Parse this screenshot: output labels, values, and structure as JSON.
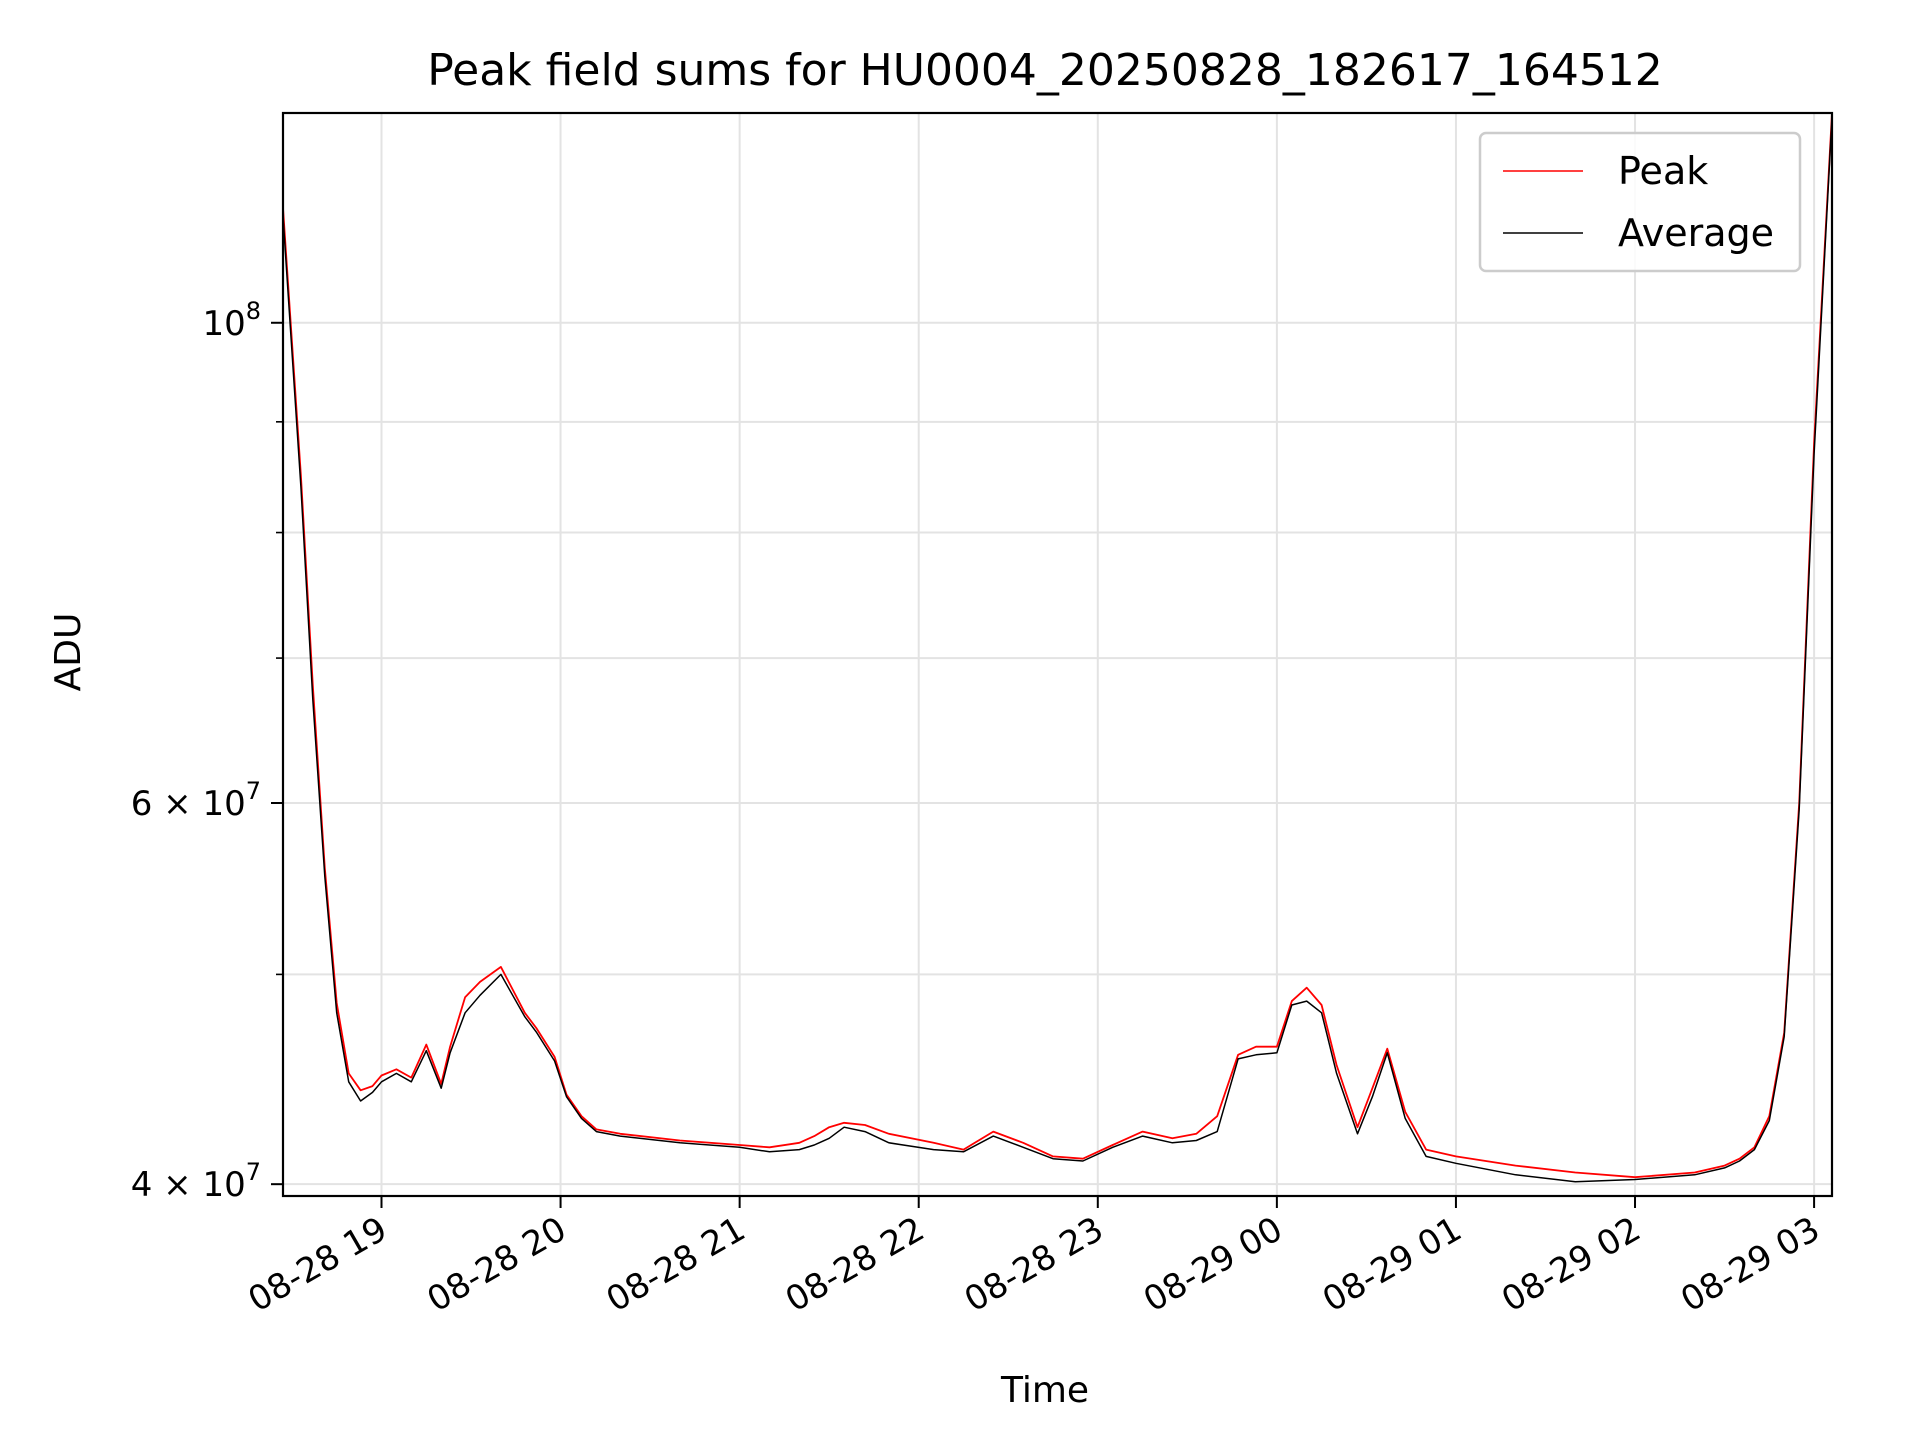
{
  "chart_data": {
    "type": "line",
    "title": "Peak field sums for HU0004_20250828_182617_164512",
    "xlabel": "Time",
    "ylabel": "ADU",
    "y_scale": "log",
    "ylim": [
      39500000,
      125000000
    ],
    "xlim": [
      "08-28 18:27",
      "08-29 03:06"
    ],
    "x_ticks": [
      "08-28 19",
      "08-28 20",
      "08-28 21",
      "08-28 22",
      "08-28 23",
      "08-29 00",
      "08-29 01",
      "08-29 02",
      "08-29 03"
    ],
    "y_tick_labels": [
      {
        "value": 40000000,
        "label": "4 × 10",
        "exp": "7"
      },
      {
        "value": 60000000,
        "label": "6 × 10",
        "exp": "7"
      },
      {
        "value": 100000000,
        "label": "10",
        "exp": "8"
      }
    ],
    "y_minor_grid": [
      50000000,
      70000000,
      80000000,
      90000000
    ],
    "grid": true,
    "legend": "top-right",
    "series": [
      {
        "name": "Peak",
        "color": "#ff0000",
        "x": [
          "08-28 18:27",
          "08-28 18:33",
          "08-28 18:37",
          "08-28 18:41",
          "08-28 18:45",
          "08-28 18:49",
          "08-28 18:53",
          "08-28 18:57",
          "08-28 19:00",
          "08-28 19:05",
          "08-28 19:10",
          "08-28 19:15",
          "08-28 19:20",
          "08-28 19:23",
          "08-28 19:28",
          "08-28 19:33",
          "08-28 19:40",
          "08-28 19:48",
          "08-28 19:52",
          "08-28 19:58",
          "08-28 20:02",
          "08-28 20:07",
          "08-28 20:12",
          "08-28 20:20",
          "08-28 20:40",
          "08-28 21:00",
          "08-28 21:10",
          "08-28 21:20",
          "08-28 21:25",
          "08-28 21:30",
          "08-28 21:35",
          "08-28 21:42",
          "08-28 21:50",
          "08-28 22:05",
          "08-28 22:15",
          "08-28 22:25",
          "08-28 22:35",
          "08-28 22:45",
          "08-28 22:55",
          "08-28 23:05",
          "08-28 23:15",
          "08-28 23:25",
          "08-28 23:33",
          "08-28 23:40",
          "08-28 23:47",
          "08-28 23:53",
          "08-29 00:00",
          "08-29 00:05",
          "08-29 00:10",
          "08-29 00:15",
          "08-29 00:20",
          "08-29 00:27",
          "08-29 00:32",
          "08-29 00:37",
          "08-29 00:43",
          "08-29 00:50",
          "08-29 01:00",
          "08-29 01:20",
          "08-29 01:40",
          "08-29 02:00",
          "08-29 02:20",
          "08-29 02:30",
          "08-29 02:35",
          "08-29 02:40",
          "08-29 02:45",
          "08-29 02:50",
          "08-29 02:55",
          "08-29 03:00",
          "08-29 03:06"
        ],
        "y": [
          113000000,
          85000000,
          68000000,
          56000000,
          48500000,
          45000000,
          44200000,
          44400000,
          44900000,
          45200000,
          44800000,
          46400000,
          44500000,
          46300000,
          48800000,
          49600000,
          50400000,
          48000000,
          47200000,
          45800000,
          44000000,
          43000000,
          42400000,
          42200000,
          41900000,
          41700000,
          41600000,
          41800000,
          42100000,
          42500000,
          42700000,
          42600000,
          42200000,
          41800000,
          41500000,
          42300000,
          41800000,
          41200000,
          41100000,
          41700000,
          42300000,
          42000000,
          42200000,
          43000000,
          45900000,
          46300000,
          46300000,
          48600000,
          49300000,
          48400000,
          45400000,
          42500000,
          44300000,
          46200000,
          43200000,
          41500000,
          41200000,
          40800000,
          40500000,
          40300000,
          40500000,
          40800000,
          41100000,
          41600000,
          43000000,
          47000000,
          60000000,
          88000000,
          125000000
        ]
      },
      {
        "name": "Average",
        "color": "#000000",
        "x": [
          "08-28 18:27",
          "08-28 18:33",
          "08-28 18:37",
          "08-28 18:41",
          "08-28 18:45",
          "08-28 18:49",
          "08-28 18:53",
          "08-28 18:57",
          "08-28 19:00",
          "08-28 19:05",
          "08-28 19:10",
          "08-28 19:15",
          "08-28 19:20",
          "08-28 19:23",
          "08-28 19:28",
          "08-28 19:33",
          "08-28 19:40",
          "08-28 19:48",
          "08-28 19:52",
          "08-28 19:58",
          "08-28 20:02",
          "08-28 20:07",
          "08-28 20:12",
          "08-28 20:20",
          "08-28 20:40",
          "08-28 21:00",
          "08-28 21:10",
          "08-28 21:20",
          "08-28 21:25",
          "08-28 21:30",
          "08-28 21:35",
          "08-28 21:42",
          "08-28 21:50",
          "08-28 22:05",
          "08-28 22:15",
          "08-28 22:25",
          "08-28 22:35",
          "08-28 22:45",
          "08-28 22:55",
          "08-28 23:05",
          "08-28 23:15",
          "08-28 23:25",
          "08-28 23:33",
          "08-28 23:40",
          "08-28 23:47",
          "08-28 23:53",
          "08-29 00:00",
          "08-29 00:05",
          "08-29 00:10",
          "08-29 00:15",
          "08-29 00:20",
          "08-29 00:27",
          "08-29 00:32",
          "08-29 00:37",
          "08-29 00:43",
          "08-29 00:50",
          "08-29 01:00",
          "08-29 01:20",
          "08-29 01:40",
          "08-29 02:00",
          "08-29 02:20",
          "08-29 02:30",
          "08-29 02:35",
          "08-29 02:40",
          "08-29 02:45",
          "08-29 02:50",
          "08-29 02:55",
          "08-29 03:00",
          "08-29 03:06"
        ],
        "y": [
          112000000,
          84000000,
          67000000,
          55500000,
          48000000,
          44600000,
          43700000,
          44100000,
          44600000,
          45000000,
          44600000,
          46100000,
          44300000,
          46000000,
          48000000,
          48900000,
          50000000,
          47800000,
          47000000,
          45600000,
          43900000,
          42900000,
          42300000,
          42100000,
          41800000,
          41600000,
          41400000,
          41500000,
          41700000,
          42000000,
          42500000,
          42300000,
          41800000,
          41500000,
          41400000,
          42100000,
          41600000,
          41100000,
          41000000,
          41600000,
          42100000,
          41800000,
          41900000,
          42300000,
          45700000,
          45900000,
          46000000,
          48400000,
          48600000,
          48000000,
          45000000,
          42200000,
          43900000,
          46000000,
          42900000,
          41200000,
          40900000,
          40400000,
          40100000,
          40200000,
          40400000,
          40700000,
          41000000,
          41500000,
          42800000,
          46800000,
          59600000,
          87000000,
          124500000
        ]
      }
    ]
  }
}
